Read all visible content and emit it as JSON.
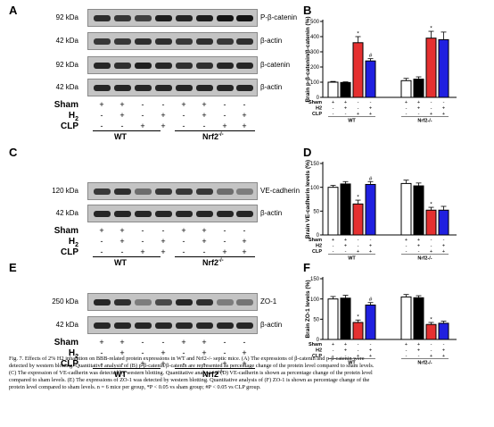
{
  "panels": [
    {
      "letter": "A"
    },
    {
      "letter": "B"
    },
    {
      "letter": "C"
    },
    {
      "letter": "D"
    },
    {
      "letter": "E"
    },
    {
      "letter": "F"
    }
  ],
  "blots": {
    "A": [
      {
        "kda": "92 kDa",
        "protein": "P-β-catenin"
      },
      {
        "kda": "42 kDa",
        "protein": "β-actin"
      },
      {
        "kda": "92 kDa",
        "protein": "β-catenin"
      },
      {
        "kda": "42 kDa",
        "protein": "β-actin"
      }
    ],
    "C": [
      {
        "kda": "120 kDa",
        "protein": "VE-cadherin"
      },
      {
        "kda": "42 kDa",
        "protein": "β-actin"
      }
    ],
    "E": [
      {
        "kda": "250 kDa",
        "protein": "ZO-1"
      },
      {
        "kda": "42 kDa",
        "protein": "β-actin"
      }
    ]
  },
  "treatments": {
    "labels": [
      "Sham",
      "H2",
      "CLP"
    ],
    "signs": [
      [
        "+",
        "+",
        "-",
        "-",
        "+",
        "+",
        "-",
        "-"
      ],
      [
        "-",
        "+",
        "-",
        "+",
        "-",
        "+",
        "-",
        "+"
      ],
      [
        "-",
        "-",
        "+",
        "+",
        "-",
        "-",
        "+",
        "+"
      ]
    ],
    "groups": [
      "WT",
      "Nrf2-/-"
    ]
  },
  "chart_data": [
    {
      "type": "bar",
      "panel": "B",
      "ylabel": "Brain p-β-catenin/β-catenin (%)",
      "ylim": [
        0,
        500
      ],
      "yticks": [
        0,
        100,
        200,
        300,
        400,
        500
      ],
      "values": [
        100,
        98,
        360,
        240,
        110,
        120,
        390,
        380
      ],
      "errors": [
        5,
        4,
        40,
        15,
        15,
        15,
        45,
        50
      ],
      "bar_colors": [
        "#ffffff",
        "#000000",
        "#e53030",
        "#2020e0",
        "#ffffff",
        "#000000",
        "#e53030",
        "#2020e0"
      ],
      "markers": [
        "",
        "",
        "*",
        "#",
        "",
        "",
        "*",
        ""
      ],
      "signs": [
        [
          "+",
          "+",
          "-",
          "-",
          "+",
          "+",
          "-",
          "-"
        ],
        [
          "-",
          "+",
          "-",
          "+",
          "-",
          "+",
          "-",
          "+"
        ],
        [
          "-",
          "-",
          "+",
          "+",
          "-",
          "-",
          "+",
          "+"
        ]
      ],
      "row_labels": [
        "Sham",
        "H2",
        "CLP"
      ],
      "groups": [
        "WT",
        "Nrf2-/-"
      ]
    },
    {
      "type": "bar",
      "panel": "D",
      "ylabel": "Brain VE-cadherin levels (%)",
      "ylim": [
        0,
        150
      ],
      "yticks": [
        0,
        50,
        100,
        150
      ],
      "values": [
        100,
        107,
        65,
        106,
        108,
        103,
        52,
        52
      ],
      "errors": [
        4,
        5,
        8,
        6,
        7,
        6,
        6,
        8
      ],
      "bar_colors": [
        "#ffffff",
        "#000000",
        "#e53030",
        "#2020e0",
        "#ffffff",
        "#000000",
        "#e53030",
        "#2020e0"
      ],
      "markers": [
        "",
        "",
        "*",
        "#",
        "",
        "",
        "*",
        ""
      ],
      "signs": [
        [
          "+",
          "+",
          "-",
          "-",
          "+",
          "+",
          "-",
          "-"
        ],
        [
          "-",
          "+",
          "-",
          "+",
          "-",
          "+",
          "-",
          "+"
        ],
        [
          "-",
          "-",
          "+",
          "+",
          "-",
          "-",
          "+",
          "+"
        ]
      ],
      "row_labels": [
        "Sham",
        "H2",
        "CLP"
      ],
      "groups": [
        "WT",
        "Nrf2-/-"
      ]
    },
    {
      "type": "bar",
      "panel": "F",
      "ylabel": "Brain ZO-1 levels (%)",
      "ylim": [
        0,
        150
      ],
      "yticks": [
        0,
        50,
        100,
        150
      ],
      "values": [
        100,
        102,
        42,
        85,
        105,
        103,
        37,
        40
      ],
      "errors": [
        6,
        7,
        6,
        6,
        6,
        5,
        5,
        5
      ],
      "bar_colors": [
        "#ffffff",
        "#000000",
        "#e53030",
        "#2020e0",
        "#ffffff",
        "#000000",
        "#e53030",
        "#2020e0"
      ],
      "markers": [
        "",
        "",
        "*",
        "#",
        "",
        "",
        "*",
        ""
      ],
      "signs": [
        [
          "+",
          "+",
          "-",
          "-",
          "+",
          "+",
          "-",
          "-"
        ],
        [
          "-",
          "+",
          "-",
          "+",
          "-",
          "+",
          "-",
          "+"
        ],
        [
          "-",
          "-",
          "+",
          "+",
          "-",
          "-",
          "+",
          "+"
        ]
      ],
      "row_labels": [
        "Sham",
        "H2",
        "CLP"
      ],
      "groups": [
        "WT",
        "Nrf2-/-"
      ]
    }
  ],
  "caption": {
    "lines": [
      "Fig. 7. Effects of 2% H2 inhalation on BBB-related protein expressions in WT and Nrf2-/- septic mice. (A) The expressions of β-catenin and p-β-catenin were",
      "detected by western blotting. Quantitative analysis of (B) p-β-catenin/β-catenin are represented as percentage change of the protein level compared to sham levels.",
      "(C) The expression of VE-cadherin was detected by western blotting. Quantitative analysis of (D) VE-cadherin is shown as percentage change of the protein level",
      "compared to sham levels. (E) The expressions of ZO-1 was detected by western blotting. Quantitative analysis of (F) ZO-1 is shown as percentage change of the",
      "protein level compared to sham levels. n = 6 mice per group, *P < 0.05 vs sham group; #P < 0.05 vs CLP group."
    ]
  }
}
